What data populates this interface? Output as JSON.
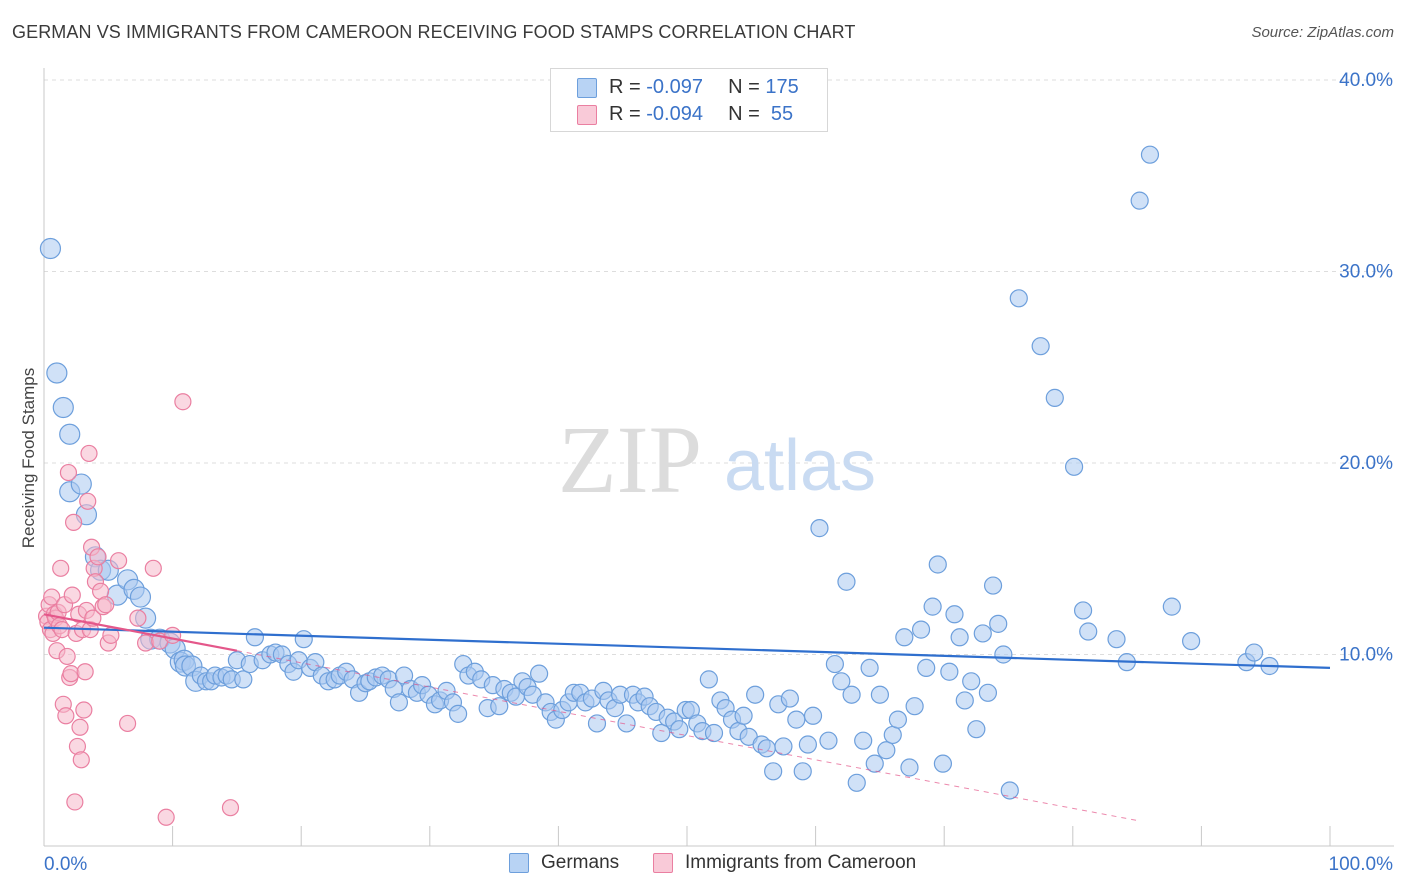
{
  "title": "GERMAN VS IMMIGRANTS FROM CAMEROON RECEIVING FOOD STAMPS CORRELATION CHART",
  "source": "Source: ZipAtlas.com",
  "watermark": {
    "zip": "ZIP",
    "atlas": "atlas"
  },
  "legend": {
    "germans": {
      "r_label": "R = ",
      "r_value": "-0.097",
      "n_label": "N = ",
      "n_value": "175"
    },
    "cameroon": {
      "r_label": "R = ",
      "r_value": "-0.094",
      "n_label": "N = ",
      "n_value": " 55"
    }
  },
  "bottom_legend": {
    "germans": "Germans",
    "cameroon": "Immigrants from Cameroon"
  },
  "colors": {
    "blue_fill": "#a9c8f0",
    "blue_stroke": "#6d9fdc",
    "blue_line": "#2f6fce",
    "pink_fill": "#f6b8cb",
    "pink_stroke": "#ea7fa1",
    "pink_line": "#e4578a",
    "value_text": "#3b73c8",
    "grid": "#dddddd"
  },
  "chart_data": {
    "type": "scatter",
    "title": "GERMAN VS IMMIGRANTS FROM CAMEROON RECEIVING FOOD STAMPS CORRELATION CHART",
    "xlabel": "",
    "ylabel": "Receiving Food Stamps",
    "xlim": [
      0,
      100
    ],
    "ylim": [
      0,
      40
    ],
    "x_tick_labels": [
      "0.0%",
      "100.0%"
    ],
    "y_tick_labels": [
      "10.0%",
      "20.0%",
      "30.0%",
      "40.0%"
    ],
    "y_ticks": [
      10,
      20,
      30,
      40
    ],
    "grid": "horizontal dashed",
    "legend_position": "top-center",
    "series": [
      {
        "name": "Germans",
        "color": "#a9c8f0",
        "trend": {
          "x": [
            0,
            100
          ],
          "y": [
            11.4,
            9.3
          ]
        },
        "points": [
          [
            0.5,
            31.2
          ],
          [
            1,
            24.7
          ],
          [
            1.5,
            22.9
          ],
          [
            2,
            21.5
          ],
          [
            2,
            18.5
          ],
          [
            2.9,
            18.9
          ],
          [
            3.3,
            17.3
          ],
          [
            4,
            15.1
          ],
          [
            4.4,
            14.4
          ],
          [
            5,
            14.4
          ],
          [
            5.7,
            13.1
          ],
          [
            6.5,
            13.9
          ],
          [
            7,
            13.4
          ],
          [
            7.5,
            13.0
          ],
          [
            7.9,
            11.9
          ],
          [
            8.3,
            10.8
          ],
          [
            9,
            10.8
          ],
          [
            9.8,
            10.6
          ],
          [
            10.2,
            10.3
          ],
          [
            10.6,
            9.6
          ],
          [
            10.9,
            9.7
          ],
          [
            11,
            9.4
          ],
          [
            11.5,
            9.4
          ],
          [
            11.8,
            8.6
          ],
          [
            12.2,
            8.9
          ],
          [
            12.6,
            8.6
          ],
          [
            13,
            8.6
          ],
          [
            13.3,
            8.9
          ],
          [
            13.8,
            8.8
          ],
          [
            14.2,
            8.9
          ],
          [
            14.6,
            8.7
          ],
          [
            15,
            9.7
          ],
          [
            15.5,
            8.7
          ],
          [
            16,
            9.5
          ],
          [
            16.4,
            10.9
          ],
          [
            17,
            9.7
          ],
          [
            17.6,
            10.0
          ],
          [
            18,
            10.1
          ],
          [
            18.5,
            10.0
          ],
          [
            19,
            9.5
          ],
          [
            19.4,
            9.1
          ],
          [
            19.8,
            9.7
          ],
          [
            20.2,
            10.8
          ],
          [
            20.7,
            9.3
          ],
          [
            21.1,
            9.6
          ],
          [
            21.6,
            8.9
          ],
          [
            22.1,
            8.6
          ],
          [
            22.6,
            8.7
          ],
          [
            23,
            8.9
          ],
          [
            23.5,
            9.1
          ],
          [
            24,
            8.7
          ],
          [
            24.5,
            8.0
          ],
          [
            25,
            8.5
          ],
          [
            25.3,
            8.6
          ],
          [
            25.8,
            8.8
          ],
          [
            26.3,
            8.9
          ],
          [
            26.8,
            8.7
          ],
          [
            27.2,
            8.2
          ],
          [
            27.6,
            7.5
          ],
          [
            28,
            8.9
          ],
          [
            28.5,
            8.2
          ],
          [
            29,
            8.0
          ],
          [
            29.4,
            8.4
          ],
          [
            29.9,
            7.9
          ],
          [
            30.4,
            7.4
          ],
          [
            30.8,
            7.6
          ],
          [
            31.3,
            8.1
          ],
          [
            31.8,
            7.5
          ],
          [
            32.2,
            6.9
          ],
          [
            32.6,
            9.5
          ],
          [
            33,
            8.9
          ],
          [
            33.5,
            9.1
          ],
          [
            34,
            8.7
          ],
          [
            34.5,
            7.2
          ],
          [
            34.9,
            8.4
          ],
          [
            35.4,
            7.3
          ],
          [
            35.8,
            8.2
          ],
          [
            36.3,
            8.0
          ],
          [
            36.7,
            7.8
          ],
          [
            37.2,
            8.6
          ],
          [
            37.6,
            8.3
          ],
          [
            38,
            7.9
          ],
          [
            38.5,
            9.0
          ],
          [
            39,
            7.5
          ],
          [
            39.4,
            7.0
          ],
          [
            39.8,
            6.6
          ],
          [
            40.3,
            7.1
          ],
          [
            40.8,
            7.5
          ],
          [
            41.2,
            8.0
          ],
          [
            41.7,
            8.0
          ],
          [
            42.1,
            7.5
          ],
          [
            42.6,
            7.7
          ],
          [
            43,
            6.4
          ],
          [
            43.5,
            8.1
          ],
          [
            43.9,
            7.6
          ],
          [
            44.4,
            7.2
          ],
          [
            44.8,
            7.9
          ],
          [
            45.3,
            6.4
          ],
          [
            45.8,
            7.9
          ],
          [
            46.2,
            7.5
          ],
          [
            46.7,
            7.8
          ],
          [
            47.1,
            7.3
          ],
          [
            47.6,
            7.0
          ],
          [
            48,
            5.9
          ],
          [
            48.5,
            6.7
          ],
          [
            49,
            6.5
          ],
          [
            49.4,
            6.1
          ],
          [
            49.9,
            7.1
          ],
          [
            50.3,
            7.1
          ],
          [
            50.8,
            6.4
          ],
          [
            51.2,
            6.0
          ],
          [
            51.7,
            8.7
          ],
          [
            52.1,
            5.9
          ],
          [
            52.6,
            7.6
          ],
          [
            53,
            7.2
          ],
          [
            53.5,
            6.6
          ],
          [
            54,
            6.0
          ],
          [
            54.4,
            6.8
          ],
          [
            54.8,
            5.7
          ],
          [
            55.3,
            7.9
          ],
          [
            55.8,
            5.3
          ],
          [
            56.2,
            5.1
          ],
          [
            56.7,
            3.9
          ],
          [
            57.1,
            7.4
          ],
          [
            57.5,
            5.2
          ],
          [
            58,
            7.7
          ],
          [
            58.5,
            6.6
          ],
          [
            59,
            3.9
          ],
          [
            59.4,
            5.3
          ],
          [
            59.8,
            6.8
          ],
          [
            60.3,
            16.6
          ],
          [
            61,
            5.5
          ],
          [
            61.5,
            9.5
          ],
          [
            62,
            8.6
          ],
          [
            62.4,
            13.8
          ],
          [
            62.8,
            7.9
          ],
          [
            63.2,
            3.3
          ],
          [
            63.7,
            5.5
          ],
          [
            64.2,
            9.3
          ],
          [
            64.6,
            4.3
          ],
          [
            65,
            7.9
          ],
          [
            65.5,
            5.0
          ],
          [
            66,
            5.8
          ],
          [
            66.4,
            6.6
          ],
          [
            66.9,
            10.9
          ],
          [
            67.3,
            4.1
          ],
          [
            67.7,
            7.3
          ],
          [
            68.2,
            11.3
          ],
          [
            68.6,
            9.3
          ],
          [
            69.1,
            12.5
          ],
          [
            69.5,
            14.7
          ],
          [
            69.9,
            4.3
          ],
          [
            70.4,
            9.1
          ],
          [
            70.8,
            12.1
          ],
          [
            71.2,
            10.9
          ],
          [
            71.6,
            7.6
          ],
          [
            72.1,
            8.6
          ],
          [
            72.5,
            6.1
          ],
          [
            73,
            11.1
          ],
          [
            73.4,
            8.0
          ],
          [
            73.8,
            13.6
          ],
          [
            74.2,
            11.6
          ],
          [
            74.6,
            10.0
          ],
          [
            75.1,
            2.9
          ],
          [
            75.8,
            28.6
          ],
          [
            77.5,
            26.1
          ],
          [
            78.6,
            23.4
          ],
          [
            80.1,
            19.8
          ],
          [
            80.8,
            12.3
          ],
          [
            81.2,
            11.2
          ],
          [
            83.4,
            10.8
          ],
          [
            84.2,
            9.6
          ],
          [
            85.2,
            33.7
          ],
          [
            86,
            36.1
          ],
          [
            87.7,
            12.5
          ],
          [
            89.2,
            10.7
          ],
          [
            93.5,
            9.6
          ],
          [
            94.1,
            10.1
          ],
          [
            95.3,
            9.4
          ]
        ]
      },
      {
        "name": "Immigrants from Cameroon",
        "color": "#f6b8cb",
        "trend": {
          "x": [
            0,
            15
          ],
          "y": [
            12.1,
            10.2
          ]
        },
        "points": [
          [
            0.2,
            12.0
          ],
          [
            0.3,
            11.7
          ],
          [
            0.4,
            12.6
          ],
          [
            0.5,
            11.3
          ],
          [
            0.6,
            13.0
          ],
          [
            0.7,
            11.1
          ],
          [
            0.8,
            12.1
          ],
          [
            0.9,
            11.9
          ],
          [
            1,
            10.2
          ],
          [
            1.1,
            12.2
          ],
          [
            1.2,
            11.5
          ],
          [
            1.3,
            14.5
          ],
          [
            1.4,
            11.3
          ],
          [
            1.5,
            7.4
          ],
          [
            1.6,
            12.6
          ],
          [
            1.7,
            6.8
          ],
          [
            1.8,
            9.9
          ],
          [
            1.9,
            19.5
          ],
          [
            2,
            8.8
          ],
          [
            2.1,
            9.0
          ],
          [
            2.2,
            13.1
          ],
          [
            2.3,
            16.9
          ],
          [
            2.4,
            2.3
          ],
          [
            2.5,
            11.1
          ],
          [
            2.6,
            5.2
          ],
          [
            2.7,
            12.1
          ],
          [
            2.8,
            6.2
          ],
          [
            2.9,
            4.5
          ],
          [
            3,
            11.3
          ],
          [
            3.1,
            7.1
          ],
          [
            3.2,
            9.1
          ],
          [
            3.3,
            12.3
          ],
          [
            3.4,
            18.0
          ],
          [
            3.5,
            20.5
          ],
          [
            3.6,
            11.3
          ],
          [
            3.7,
            15.6
          ],
          [
            3.8,
            11.9
          ],
          [
            3.9,
            14.5
          ],
          [
            4,
            13.8
          ],
          [
            4.2,
            15.1
          ],
          [
            4.4,
            13.3
          ],
          [
            4.6,
            12.5
          ],
          [
            4.8,
            12.6
          ],
          [
            5,
            10.6
          ],
          [
            5.2,
            11.0
          ],
          [
            5.8,
            14.9
          ],
          [
            6.5,
            6.4
          ],
          [
            7.3,
            11.9
          ],
          [
            7.9,
            10.6
          ],
          [
            8.5,
            14.5
          ],
          [
            9,
            10.7
          ],
          [
            9.5,
            1.5
          ],
          [
            10,
            11.0
          ],
          [
            10.8,
            23.2
          ],
          [
            14.5,
            2.0
          ]
        ]
      }
    ]
  }
}
